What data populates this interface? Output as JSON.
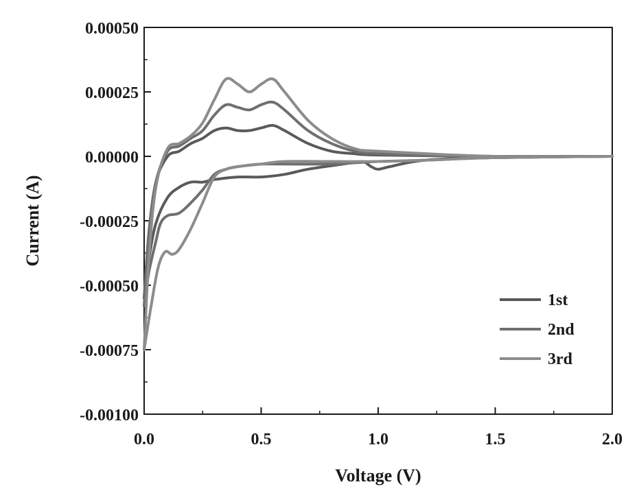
{
  "chart_data": {
    "type": "line",
    "title": "",
    "xlabel": "Voltage (V)",
    "ylabel": "Current (A)",
    "xlim": [
      0.0,
      2.0
    ],
    "ylim": [
      -0.001,
      0.0005
    ],
    "x_ticks": [
      0.0,
      0.5,
      1.0,
      1.5,
      2.0
    ],
    "x_tick_labels": [
      "0.0",
      "0.5",
      "1.0",
      "1.5",
      "2.0"
    ],
    "y_ticks": [
      0.0005,
      0.00025,
      0.0,
      -0.00025,
      -0.0005,
      -0.00075,
      -0.001
    ],
    "y_tick_labels": [
      "0.00050",
      "0.00025",
      "0.00000",
      "-0.00025",
      "-0.00050",
      "-0.00075",
      "-0.00100"
    ],
    "grid": false,
    "legend_position": "bottom-right",
    "series": [
      {
        "name": "1st",
        "color": "#5a5a5a",
        "cathodic": [
          [
            2.0,
            0.0
          ],
          [
            1.5,
            -5e-06
          ],
          [
            1.2,
            -1.5e-05
          ],
          [
            1.05,
            -4e-05
          ],
          [
            1.0,
            -5e-05
          ],
          [
            0.97,
            -4e-05
          ],
          [
            0.93,
            -2e-05
          ],
          [
            0.85,
            -3e-05
          ],
          [
            0.7,
            -5e-05
          ],
          [
            0.6,
            -7e-05
          ],
          [
            0.5,
            -8e-05
          ],
          [
            0.4,
            -8e-05
          ],
          [
            0.3,
            -9e-05
          ],
          [
            0.25,
            -0.0001
          ],
          [
            0.2,
            -0.0001
          ],
          [
            0.15,
            -0.00012
          ],
          [
            0.1,
            -0.00016
          ],
          [
            0.05,
            -0.00026
          ],
          [
            0.02,
            -0.0004
          ],
          [
            0.0,
            -0.00055
          ]
        ],
        "anodic": [
          [
            0.0,
            -0.00055
          ],
          [
            0.02,
            -0.0003
          ],
          [
            0.05,
            -0.0001
          ],
          [
            0.1,
            0.0
          ],
          [
            0.15,
            2e-05
          ],
          [
            0.2,
            5e-05
          ],
          [
            0.25,
            7e-05
          ],
          [
            0.3,
            0.0001
          ],
          [
            0.35,
            0.00011
          ],
          [
            0.4,
            0.0001
          ],
          [
            0.45,
            0.0001
          ],
          [
            0.5,
            0.00011
          ],
          [
            0.55,
            0.00012
          ],
          [
            0.6,
            0.0001
          ],
          [
            0.7,
            5e-05
          ],
          [
            0.8,
            2e-05
          ],
          [
            0.9,
            1e-05
          ],
          [
            1.0,
            5e-06
          ],
          [
            1.5,
            0.0
          ],
          [
            2.0,
            0.0
          ]
        ]
      },
      {
        "name": "2nd",
        "color": "#6f6f6f",
        "cathodic": [
          [
            2.0,
            0.0
          ],
          [
            1.5,
            -5e-06
          ],
          [
            1.2,
            -1.5e-05
          ],
          [
            1.0,
            -2e-05
          ],
          [
            0.9,
            -2.5e-05
          ],
          [
            0.8,
            -3e-05
          ],
          [
            0.6,
            -3e-05
          ],
          [
            0.5,
            -3e-05
          ],
          [
            0.4,
            -4e-05
          ],
          [
            0.35,
            -5e-05
          ],
          [
            0.3,
            -7e-05
          ],
          [
            0.25,
            -0.00013
          ],
          [
            0.2,
            -0.00018
          ],
          [
            0.15,
            -0.00022
          ],
          [
            0.1,
            -0.00023
          ],
          [
            0.07,
            -0.00026
          ],
          [
            0.05,
            -0.00033
          ],
          [
            0.02,
            -0.00045
          ],
          [
            0.0,
            -0.00058
          ]
        ],
        "anodic": [
          [
            0.0,
            -0.00058
          ],
          [
            0.02,
            -0.0003
          ],
          [
            0.05,
            -0.0001
          ],
          [
            0.1,
            2e-05
          ],
          [
            0.15,
            4e-05
          ],
          [
            0.2,
            7e-05
          ],
          [
            0.25,
            0.0001
          ],
          [
            0.3,
            0.00016
          ],
          [
            0.35,
            0.0002
          ],
          [
            0.4,
            0.00019
          ],
          [
            0.45,
            0.00018
          ],
          [
            0.5,
            0.0002
          ],
          [
            0.55,
            0.00021
          ],
          [
            0.6,
            0.00018
          ],
          [
            0.7,
            0.0001
          ],
          [
            0.8,
            5e-05
          ],
          [
            0.9,
            2e-05
          ],
          [
            1.0,
            1e-05
          ],
          [
            1.5,
            0.0
          ],
          [
            2.0,
            0.0
          ]
        ]
      },
      {
        "name": "3rd",
        "color": "#8c8c8c",
        "cathodic": [
          [
            2.0,
            0.0
          ],
          [
            1.5,
            -5e-06
          ],
          [
            1.2,
            -1.5e-05
          ],
          [
            1.0,
            -2e-05
          ],
          [
            0.8,
            -2e-05
          ],
          [
            0.6,
            -2e-05
          ],
          [
            0.5,
            -3e-05
          ],
          [
            0.4,
            -4e-05
          ],
          [
            0.35,
            -5e-05
          ],
          [
            0.3,
            -8e-05
          ],
          [
            0.25,
            -0.00018
          ],
          [
            0.2,
            -0.00028
          ],
          [
            0.15,
            -0.00036
          ],
          [
            0.12,
            -0.00038
          ],
          [
            0.09,
            -0.00037
          ],
          [
            0.06,
            -0.00043
          ],
          [
            0.03,
            -0.00058
          ],
          [
            0.0,
            -0.00075
          ]
        ],
        "anodic": [
          [
            0.0,
            -0.00075
          ],
          [
            0.02,
            -0.0004
          ],
          [
            0.05,
            -0.00012
          ],
          [
            0.1,
            3e-05
          ],
          [
            0.15,
            5e-05
          ],
          [
            0.2,
            8e-05
          ],
          [
            0.25,
            0.00013
          ],
          [
            0.3,
            0.00022
          ],
          [
            0.35,
            0.0003
          ],
          [
            0.4,
            0.00028
          ],
          [
            0.45,
            0.00025
          ],
          [
            0.5,
            0.00028
          ],
          [
            0.55,
            0.0003
          ],
          [
            0.6,
            0.00025
          ],
          [
            0.7,
            0.00014
          ],
          [
            0.8,
            7e-05
          ],
          [
            0.9,
            3e-05
          ],
          [
            1.0,
            2e-05
          ],
          [
            1.5,
            0.0
          ],
          [
            2.0,
            0.0
          ]
        ]
      }
    ]
  }
}
